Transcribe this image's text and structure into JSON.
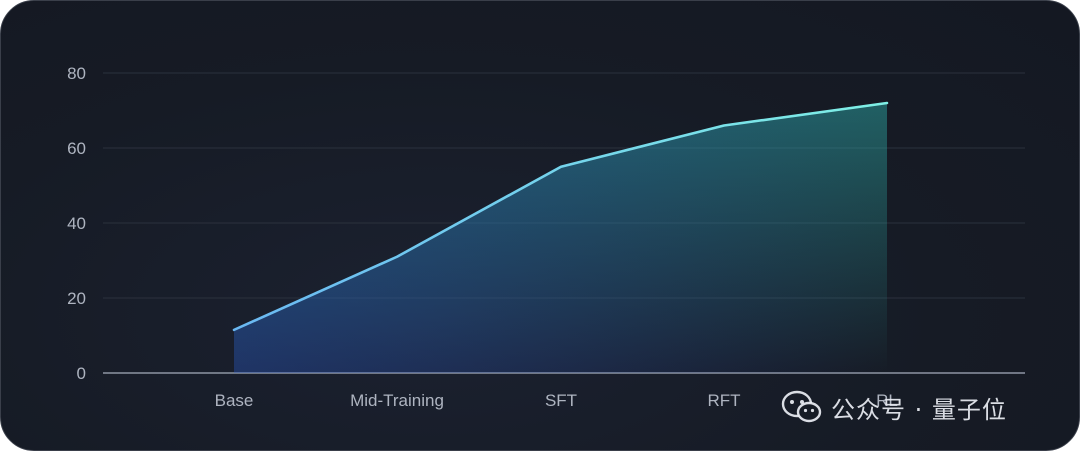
{
  "chart_data": {
    "type": "area",
    "categories": [
      "Base",
      "Mid-Training",
      "SFT",
      "RFT",
      "RL"
    ],
    "values": [
      11.5,
      31,
      55,
      66,
      72
    ],
    "ylim": [
      0,
      80
    ],
    "yticks": [
      0,
      20,
      40,
      60,
      80
    ],
    "grid": true,
    "colors": {
      "line_start": "#6ab8f2",
      "line_end": "#7ff0e6",
      "fill": "#2fb5b0"
    }
  },
  "watermark": {
    "icon": "wechat-icon",
    "text": "公众号 · 量子位"
  }
}
